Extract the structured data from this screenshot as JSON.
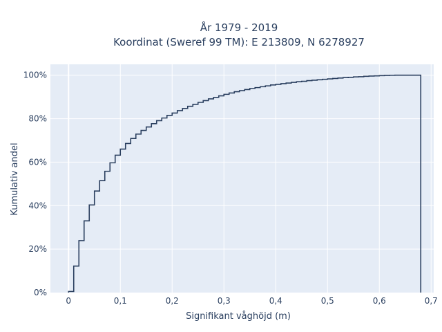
{
  "chart_data": {
    "type": "line",
    "style": "step",
    "title_line1": "År 1979 - 2019",
    "title_line2": "Koordinat (Sweref 99 TM): E 213809, N 6278927",
    "xlabel": "Signifikant våghöjd (m)",
    "ylabel": "Kumulativ andel",
    "xlim": [
      -0.035,
      0.705
    ],
    "ylim": [
      0,
      1.05
    ],
    "x_ticks": [
      0,
      0.1,
      0.2,
      0.3,
      0.4,
      0.5,
      0.6,
      0.7
    ],
    "x_tick_labels": [
      "0",
      "0,1",
      "0,2",
      "0,3",
      "0,4",
      "0,5",
      "0,6",
      "0,7"
    ],
    "y_ticks": [
      0,
      0.2,
      0.4,
      0.6,
      0.8,
      1.0
    ],
    "y_tick_labels": [
      "0%",
      "20%",
      "40%",
      "60%",
      "80%",
      "100%"
    ],
    "grid": true,
    "colors": {
      "background": "#e5ecf6",
      "grid": "#ffffff",
      "line": "#2a3f5f"
    },
    "bin_width": 0.01,
    "x": [
      0,
      0.01,
      0.02,
      0.03,
      0.04,
      0.05,
      0.06,
      0.07,
      0.08,
      0.09,
      0.1,
      0.11,
      0.12,
      0.13,
      0.14,
      0.15,
      0.16,
      0.17,
      0.18,
      0.19,
      0.2,
      0.21,
      0.22,
      0.23,
      0.24,
      0.25,
      0.26,
      0.27,
      0.28,
      0.29,
      0.3,
      0.31,
      0.32,
      0.33,
      0.34,
      0.35,
      0.36,
      0.37,
      0.38,
      0.39,
      0.4,
      0.41,
      0.42,
      0.43,
      0.44,
      0.45,
      0.46,
      0.47,
      0.48,
      0.49,
      0.5,
      0.51,
      0.52,
      0.53,
      0.54,
      0.55,
      0.56,
      0.57,
      0.58,
      0.59,
      0.6,
      0.61,
      0.62,
      0.63,
      0.64,
      0.65,
      0.66,
      0.67
    ],
    "y": [
      0.005,
      0.122,
      0.239,
      0.33,
      0.403,
      0.467,
      0.515,
      0.558,
      0.597,
      0.632,
      0.66,
      0.686,
      0.709,
      0.729,
      0.746,
      0.762,
      0.777,
      0.791,
      0.803,
      0.815,
      0.826,
      0.837,
      0.847,
      0.857,
      0.866,
      0.875,
      0.883,
      0.891,
      0.898,
      0.905,
      0.912,
      0.918,
      0.924,
      0.929,
      0.934,
      0.939,
      0.943,
      0.947,
      0.951,
      0.955,
      0.958,
      0.961,
      0.964,
      0.967,
      0.97,
      0.972,
      0.975,
      0.977,
      0.979,
      0.981,
      0.983,
      0.985,
      0.987,
      0.989,
      0.99,
      0.992,
      0.993,
      0.995,
      0.996,
      0.997,
      0.998,
      0.999,
      0.9995,
      1.0,
      1.0,
      1.0,
      1.0,
      1.0
    ]
  }
}
